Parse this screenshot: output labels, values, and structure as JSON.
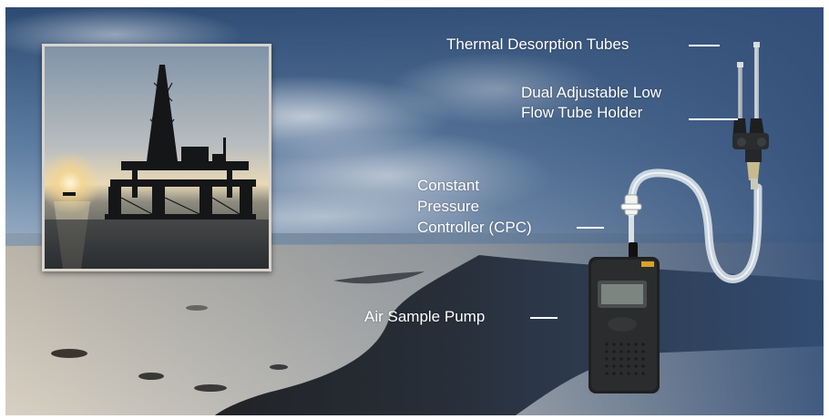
{
  "labels": {
    "thermal_tubes": "Thermal Desorption Tubes",
    "tube_holder_line1": "Dual Adjustable Low",
    "tube_holder_line2": "Flow Tube Holder",
    "cpc_line1": "Constant",
    "cpc_line2": "Pressure",
    "cpc_line3": "Controller (CPC)",
    "pump": "Air Sample Pump"
  },
  "icons": [
    "oil-rig-icon",
    "air-sample-pump-icon",
    "thermal-tube-icon",
    "tube-holder-icon",
    "cpc-icon"
  ],
  "colors": {
    "label_text": "#ffffff",
    "sky_top": "#2e4a73",
    "sand": "#c9c1b3",
    "oil_slick": "#1a1612"
  }
}
